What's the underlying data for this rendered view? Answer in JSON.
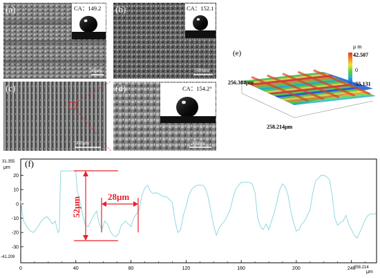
{
  "panels": {
    "a": {
      "label": "(a)",
      "ca_text": "CA：149.2",
      "scale": "50μm"
    },
    "b": {
      "label": "(b)",
      "ca_text": "CA：152.1",
      "scale": "500nm"
    },
    "c": {
      "label": "(c)",
      "scale": "500μm"
    },
    "d": {
      "label": "(d)",
      "ca_text": "CA：154.2°",
      "scale": "500nm"
    },
    "e": {
      "label": "(e)",
      "unit": "μ m",
      "scale_max": "42.507",
      "scale_mid": "0",
      "scale_min": "-55.131",
      "dim_y": "256.384μm",
      "dim_x": "258.214μm",
      "colors": [
        "#e23a24",
        "#f08a1e",
        "#f0e23a",
        "#5fd23c",
        "#2ab4c8",
        "#2450d8"
      ]
    }
  },
  "chart_data": {
    "type": "line",
    "panel_label": "(f)",
    "y_unit": "μm",
    "x_unit": "μm",
    "line_color": "#8fd8e0",
    "annotation_color": "#e8202a",
    "ylim": [
      -41.209,
      31.355
    ],
    "xlim": [
      0,
      258.214
    ],
    "y_max_label": "31.355",
    "y_min_label": "-41.209",
    "x_max_label": "258.214",
    "x_ticks": [
      "0",
      "40",
      "80",
      "120",
      "160",
      "200",
      "240"
    ],
    "y_ticks": [
      "20",
      "10",
      "0",
      "-10",
      "-20",
      "-30"
    ],
    "height_annotation": "52μm",
    "width_annotation": "28μm",
    "x": [
      0,
      1,
      2,
      3.5,
      5,
      7,
      9,
      11,
      13,
      15,
      17,
      19,
      21,
      23,
      25,
      27,
      28,
      29,
      31,
      33,
      35,
      37,
      39,
      40,
      41,
      43,
      45,
      47,
      49,
      51,
      53,
      55,
      57,
      59,
      61,
      63,
      65,
      67,
      69,
      71,
      73,
      75,
      76,
      78,
      80,
      82,
      84,
      86,
      88,
      90,
      92,
      94,
      96,
      98,
      100,
      102,
      104,
      106,
      108,
      110,
      112,
      114,
      116,
      118,
      120,
      122,
      124,
      126,
      128,
      130,
      132,
      134,
      136,
      138,
      140,
      142,
      144,
      146,
      148,
      150,
      152,
      154,
      156,
      158,
      160,
      162,
      164,
      166,
      168,
      170,
      172,
      174,
      176,
      178,
      180,
      182,
      184,
      186,
      188,
      190,
      192,
      194,
      196,
      198,
      200,
      202,
      204,
      206,
      208,
      210,
      212,
      214,
      216,
      218,
      220,
      222,
      224,
      226,
      228,
      230,
      232,
      234,
      236,
      238,
      240,
      242,
      244,
      246,
      248,
      250,
      252,
      254,
      256,
      258
    ],
    "y": [
      2,
      -5,
      -12,
      -14,
      -17,
      -19,
      -20,
      -18,
      -15,
      -12,
      -10,
      -9,
      -11,
      -14,
      -12,
      -20,
      -19,
      23,
      23,
      23,
      23,
      23,
      23,
      23,
      9,
      2,
      -8,
      -15,
      -16,
      -12,
      -8,
      -5,
      -14,
      -18,
      -12,
      -14,
      -19,
      -22,
      -23,
      -21,
      -15,
      -13,
      -12,
      -14,
      -16,
      -10,
      -7,
      -4,
      6,
      11,
      13,
      9,
      7,
      8,
      7,
      6,
      5,
      5,
      3,
      1,
      -12,
      -20,
      -18,
      -8,
      -2,
      6,
      10,
      12,
      13,
      13,
      13,
      11,
      5,
      -5,
      -15,
      -22,
      -17,
      -14,
      -12,
      -8,
      -4,
      4,
      10,
      13,
      15,
      15,
      15,
      15,
      14,
      8,
      -10,
      -16,
      -18,
      -14,
      -18,
      -12,
      -6,
      2,
      10,
      14,
      12,
      6,
      -5,
      -13,
      -19,
      -18,
      -14,
      -12,
      -8,
      -4,
      8,
      16,
      18,
      20,
      20,
      19,
      17,
      6,
      -10,
      -15,
      -13,
      -12,
      -8,
      -14,
      -18,
      -22,
      -24,
      -20,
      -16,
      -11,
      -8,
      -7,
      -7,
      -7
    ]
  }
}
